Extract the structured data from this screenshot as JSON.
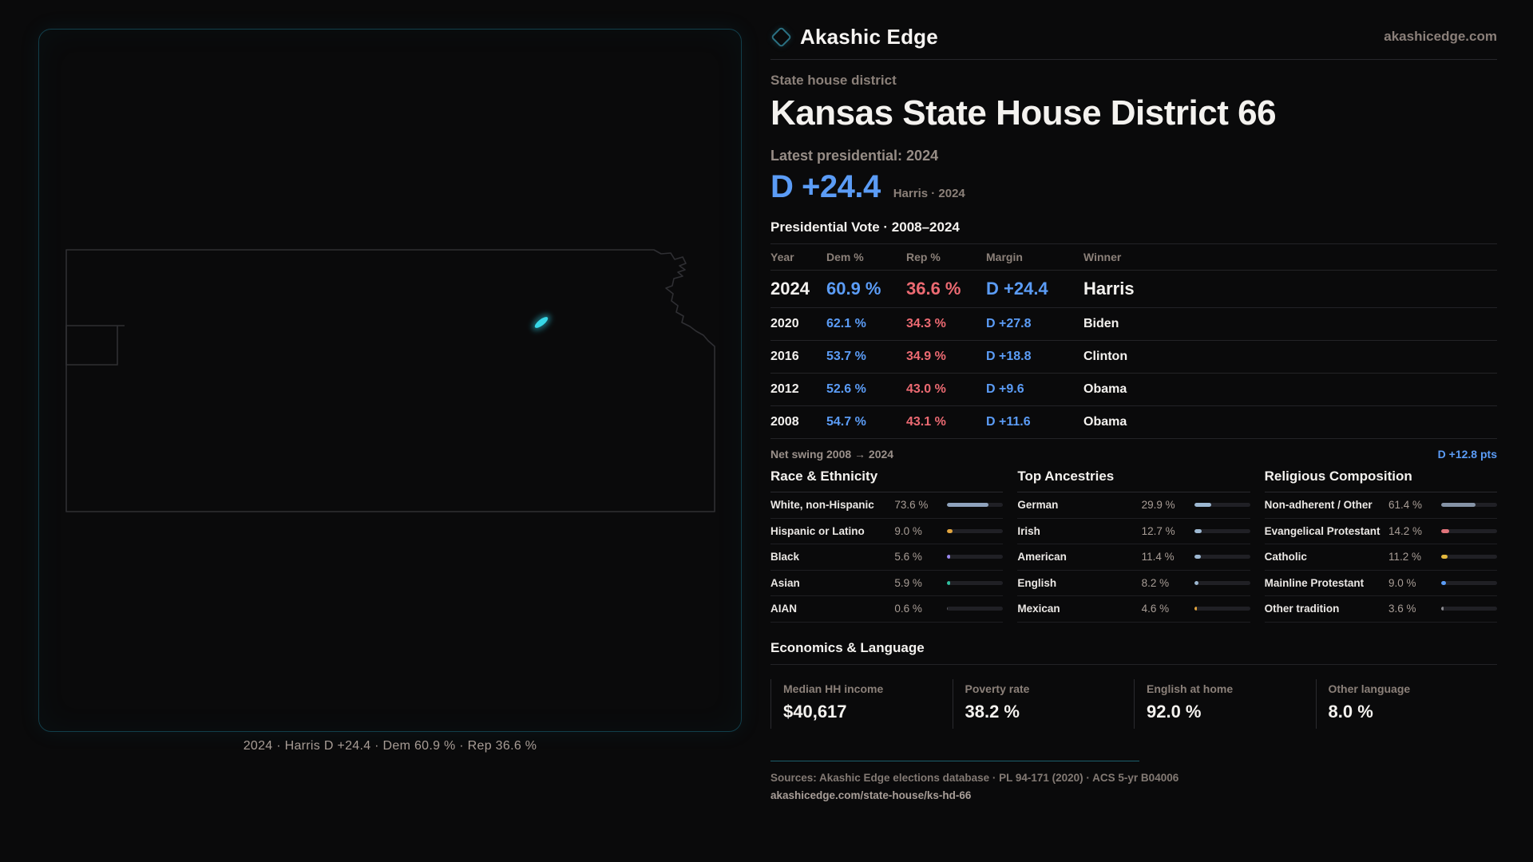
{
  "brand": {
    "name": "Akashic Edge",
    "domain": "akashicedge.com"
  },
  "hero": {
    "kicker": "State house district",
    "title": "Kansas State House District 66",
    "latest_label": "Latest presidential: 2024",
    "margin": "D +24.4",
    "margin_note": "Harris · 2024"
  },
  "map": {
    "caption": "2024 · Harris D +24.4 · Dem 60.9 % · Rep 36.6 %"
  },
  "vote_table": {
    "title": "Presidential Vote · 2008–2024",
    "columns": {
      "year": "Year",
      "dem": "Dem %",
      "rep": "Rep %",
      "margin": "Margin",
      "winner": "Winner"
    },
    "rows": [
      {
        "year": "2024",
        "dem": "60.9 %",
        "rep": "36.6 %",
        "margin": "D +24.4",
        "winner": "Harris"
      },
      {
        "year": "2020",
        "dem": "62.1 %",
        "rep": "34.3 %",
        "margin": "D +27.8",
        "winner": "Biden"
      },
      {
        "year": "2016",
        "dem": "53.7 %",
        "rep": "34.9 %",
        "margin": "D +18.8",
        "winner": "Clinton"
      },
      {
        "year": "2012",
        "dem": "52.6 %",
        "rep": "43.0 %",
        "margin": "D +9.6",
        "winner": "Obama"
      },
      {
        "year": "2008",
        "dem": "54.7 %",
        "rep": "43.1 %",
        "margin": "D +11.6",
        "winner": "Obama"
      }
    ],
    "net_swing_label": "Net swing 2008 → 2024",
    "net_swing_value": "D +12.8 pts"
  },
  "demographics": {
    "race": {
      "title": "Race & Ethnicity",
      "rows": [
        {
          "label": "White, non-Hispanic",
          "value": "73.6 %",
          "pct": 73.6,
          "color": "#8fa3bd"
        },
        {
          "label": "Hispanic or Latino",
          "value": "9.0 %",
          "pct": 9.0,
          "color": "#e2a53e"
        },
        {
          "label": "Black",
          "value": "5.6 %",
          "pct": 5.6,
          "color": "#9a88ef"
        },
        {
          "label": "Asian",
          "value": "5.9 %",
          "pct": 5.9,
          "color": "#2fbf9f"
        },
        {
          "label": "AIAN",
          "value": "0.6 %",
          "pct": 0.6,
          "color": "#56565c"
        }
      ]
    },
    "ancestries": {
      "title": "Top Ancestries",
      "rows": [
        {
          "label": "German",
          "value": "29.9 %",
          "pct": 29.9,
          "color": "#9db8d2"
        },
        {
          "label": "Irish",
          "value": "12.7 %",
          "pct": 12.7,
          "color": "#9db8d2"
        },
        {
          "label": "American",
          "value": "11.4 %",
          "pct": 11.4,
          "color": "#9db8d2"
        },
        {
          "label": "English",
          "value": "8.2 %",
          "pct": 8.2,
          "color": "#9db8d2"
        },
        {
          "label": "Mexican",
          "value": "4.6 %",
          "pct": 4.6,
          "color": "#e2a53e"
        }
      ]
    },
    "religion": {
      "title": "Religious Composition",
      "rows": [
        {
          "label": "Non-adherent / Other",
          "value": "61.4 %",
          "pct": 61.4,
          "color": "#8593a6"
        },
        {
          "label": "Evangelical Protestant",
          "value": "14.2 %",
          "pct": 14.2,
          "color": "#e0737a"
        },
        {
          "label": "Catholic",
          "value": "11.2 %",
          "pct": 11.2,
          "color": "#e3b83e"
        },
        {
          "label": "Mainline Protestant",
          "value": "9.0 %",
          "pct": 9.0,
          "color": "#5b9cf6"
        },
        {
          "label": "Other tradition",
          "value": "3.6 %",
          "pct": 3.6,
          "color": "#8a8a90"
        }
      ]
    }
  },
  "economics": {
    "title": "Economics & Language",
    "stats": [
      {
        "label": "Median HH income",
        "value": "$40,617"
      },
      {
        "label": "Poverty rate",
        "value": "38.2 %"
      },
      {
        "label": "English at home",
        "value": "92.0 %"
      },
      {
        "label": "Other language",
        "value": "8.0 %"
      }
    ]
  },
  "footer": {
    "sources": "Sources: Akashic Edge elections database · PL 94-171 (2020) · ACS 5-yr B04006",
    "permalink": "akashicedge.com/state-house/ks-hd-66"
  },
  "colors": {
    "dem": "#5b9cf6",
    "rep": "#ec6a72",
    "accent_teal": "#1c5f6c",
    "district": "#37d7e7"
  },
  "chart_data": [
    {
      "type": "table",
      "title": "Presidential Vote · 2008–2024",
      "columns": [
        "Year",
        "Dem %",
        "Rep %",
        "Margin",
        "Winner"
      ],
      "rows": [
        [
          "2024",
          60.9,
          36.6,
          "D +24.4",
          "Harris"
        ],
        [
          "2020",
          62.1,
          34.3,
          "D +27.8",
          "Biden"
        ],
        [
          "2016",
          53.7,
          34.9,
          "D +18.8",
          "Clinton"
        ],
        [
          "2012",
          52.6,
          43.0,
          "D +9.6",
          "Obama"
        ],
        [
          "2008",
          54.7,
          43.1,
          "D +11.6",
          "Obama"
        ]
      ],
      "annotations": [
        "Net swing 2008 → 2024: D +12.8 pts",
        "Latest presidential: 2024 — D +24.4 (Harris)"
      ]
    },
    {
      "type": "bar",
      "title": "Race & Ethnicity",
      "categories": [
        "White, non-Hispanic",
        "Hispanic or Latino",
        "Black",
        "Asian",
        "AIAN"
      ],
      "values": [
        73.6,
        9.0,
        5.6,
        5.9,
        0.6
      ],
      "xlabel": "",
      "ylabel": "%",
      "xlim": [
        0,
        100
      ],
      "grid": false,
      "legend": "none"
    },
    {
      "type": "bar",
      "title": "Top Ancestries",
      "categories": [
        "German",
        "Irish",
        "American",
        "English",
        "Mexican"
      ],
      "values": [
        29.9,
        12.7,
        11.4,
        8.2,
        4.6
      ],
      "xlabel": "",
      "ylabel": "%",
      "xlim": [
        0,
        100
      ],
      "grid": false,
      "legend": "none"
    },
    {
      "type": "bar",
      "title": "Religious Composition",
      "categories": [
        "Non-adherent / Other",
        "Evangelical Protestant",
        "Catholic",
        "Mainline Protestant",
        "Other tradition"
      ],
      "values": [
        61.4,
        14.2,
        11.2,
        9.0,
        3.6
      ],
      "xlabel": "",
      "ylabel": "%",
      "xlim": [
        0,
        100
      ],
      "grid": false,
      "legend": "none"
    },
    {
      "type": "table",
      "title": "Economics & Language",
      "columns": [
        "Median HH income",
        "Poverty rate",
        "English at home",
        "Other language"
      ],
      "rows": [
        [
          "$40,617",
          "38.2 %",
          "92.0 %",
          "8.0 %"
        ]
      ]
    }
  ]
}
